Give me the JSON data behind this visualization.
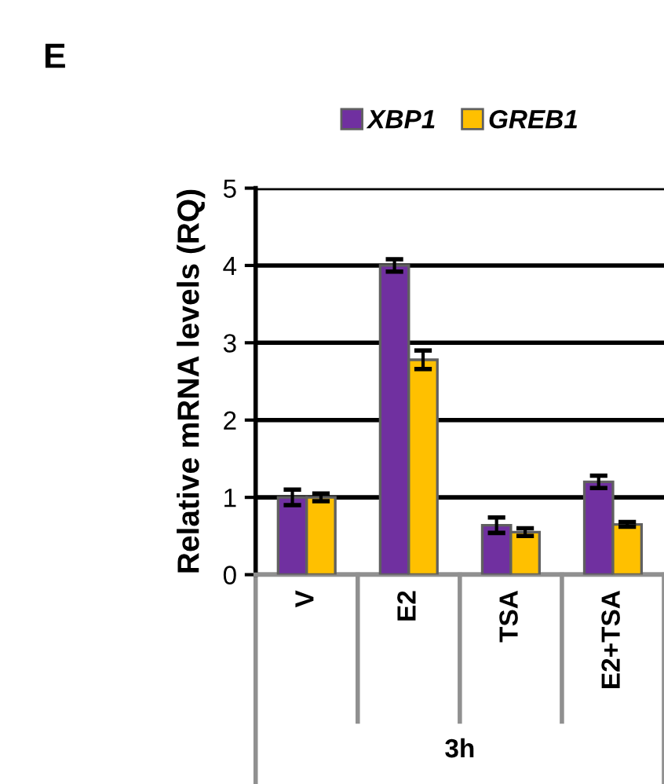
{
  "chart_data": {
    "type": "bar",
    "ylabel": "Relative mRNA levels (RQ)",
    "categories": [
      "V",
      "E2",
      "TSA",
      "E2+TSA"
    ],
    "series": [
      {
        "name": "XBP1",
        "color": "#7030a0",
        "values": [
          1.0,
          4.0,
          0.64,
          1.2
        ],
        "errors": [
          0.1,
          0.08,
          0.1,
          0.08
        ]
      },
      {
        "name": "GREB1",
        "color": "#ffc000",
        "values": [
          1.0,
          2.78,
          0.55,
          0.65
        ],
        "errors": [
          0.05,
          0.12,
          0.05,
          0.03
        ]
      }
    ],
    "ylim": [
      0,
      5
    ],
    "yticks": [
      0,
      1,
      2,
      3,
      4,
      5
    ],
    "grid": "y",
    "legend": "top",
    "annotations": [
      "E",
      "3h"
    ]
  }
}
